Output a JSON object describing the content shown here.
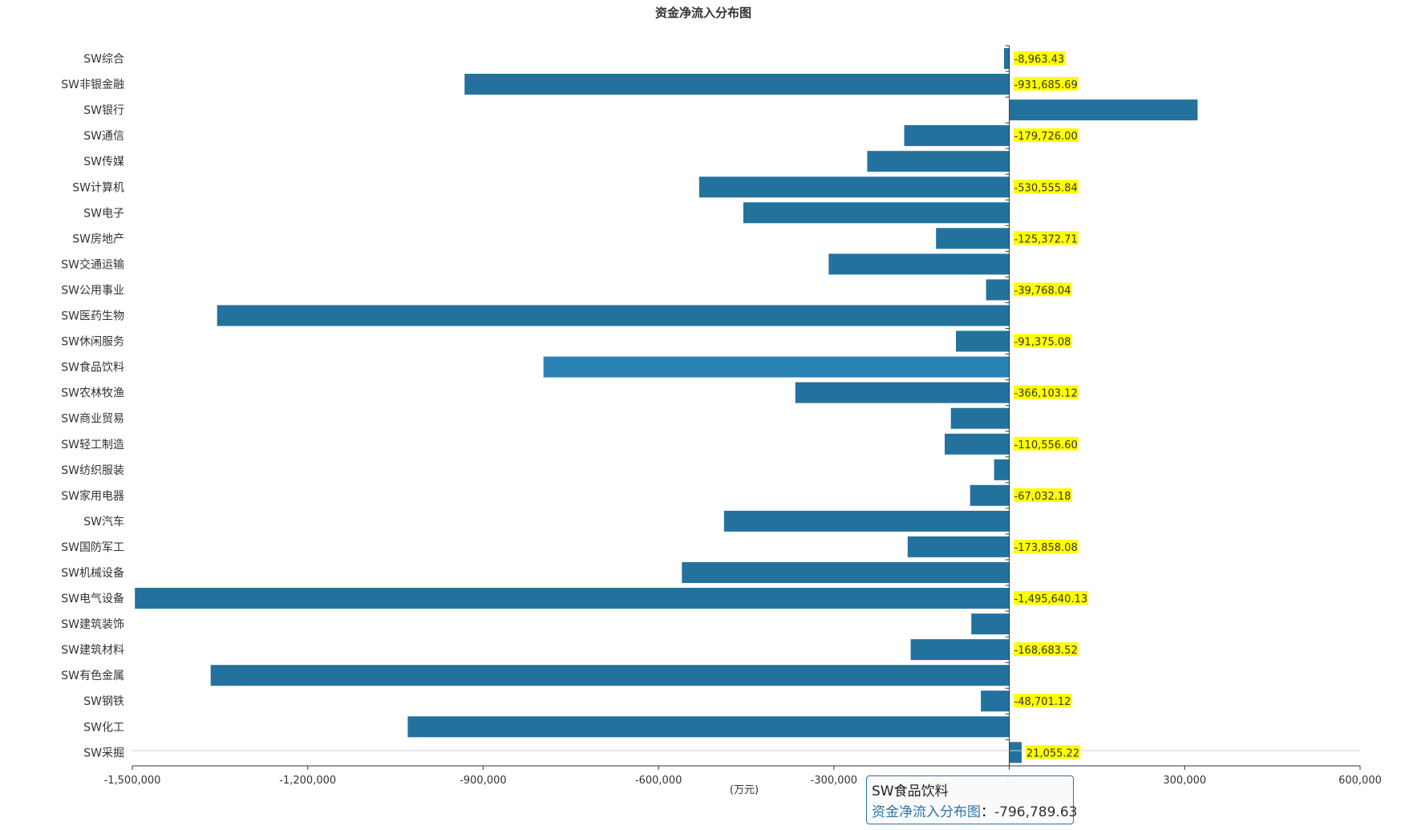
{
  "chart_data": {
    "type": "bar",
    "orientation": "horizontal",
    "title": "资金净流入分布图",
    "xlabel": "(万元)",
    "ylabel": "",
    "xlim": [
      -1500000,
      600000
    ],
    "x_ticks": [
      -1500000,
      -1200000,
      -900000,
      -600000,
      -300000,
      0,
      300000,
      600000
    ],
    "x_tick_labels": [
      "-1,500,000",
      "-1,200,000",
      "-900,000",
      "-600,000",
      "-300,000",
      "0",
      "300,000",
      "600,000"
    ],
    "series": [
      {
        "name": "资金净流入分布图",
        "color": "#23729e",
        "highlight_color": "#2a82b4",
        "label_background": "#ffff00",
        "categories": [
          "SW综合",
          "SW非银金融",
          "SW银行",
          "SW通信",
          "SW传媒",
          "SW计算机",
          "SW电子",
          "SW房地产",
          "SW交通运输",
          "SW公用事业",
          "SW医药生物",
          "SW休闲服务",
          "SW食品饮料",
          "SW农林牧渔",
          "SW商业贸易",
          "SW轻工制造",
          "SW纺织服装",
          "SW家用电器",
          "SW汽车",
          "SW国防军工",
          "SW机械设备",
          "SW电气设备",
          "SW建筑装饰",
          "SW建筑材料",
          "SW有色金属",
          "SW钢铁",
          "SW化工",
          "SW采掘"
        ],
        "values": [
          -8963.43,
          -931685.69,
          322000,
          -179726.0,
          -243000,
          -530555.84,
          -455000,
          -125372.71,
          -309000,
          -39768.04,
          -1355000,
          -91375.08,
          -796789.63,
          -366103.12,
          -100000,
          -110556.6,
          -26000,
          -67032.18,
          -488000,
          -173858.08,
          -560000,
          -1495640.13,
          -65000,
          -168683.52,
          -1366000,
          -48701.12,
          -1029000,
          21055.22
        ],
        "value_labels": [
          "-8,963.43",
          "-931,685.69",
          "",
          "-179,726.00",
          "",
          "-530,555.84",
          "",
          "-125,372.71",
          "",
          "-39,768.04",
          "",
          "-91,375.08",
          "",
          "-366,103.12",
          "",
          "-110,556.60",
          "",
          "-67,032.18",
          "",
          "-173,858.08",
          "",
          "-1,495,640.13",
          "",
          "-168,683.52",
          "",
          "-48,701.12",
          "",
          "21,055.22"
        ]
      }
    ],
    "highlighted_category": "SW食品饮料",
    "grid": false,
    "legend": "none"
  },
  "tooltip": {
    "title": "SW食品饮料",
    "series_name": "资金净流入分布图",
    "separator": "：",
    "value": "-796,789.63"
  }
}
